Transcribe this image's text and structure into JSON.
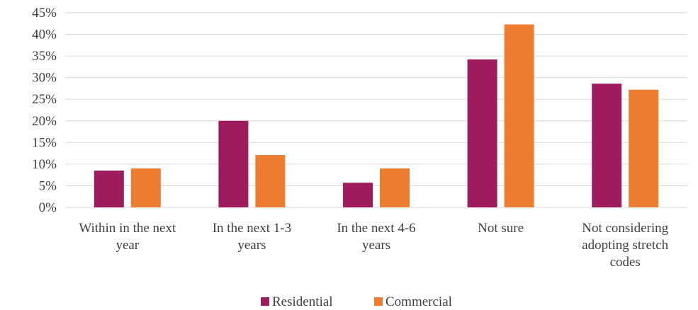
{
  "chart_data": {
    "type": "bar",
    "categories": [
      [
        "Within in the next",
        "year"
      ],
      [
        "In the next 1-3",
        "years"
      ],
      [
        "In the next 4-6",
        "years"
      ],
      [
        "Not sure"
      ],
      [
        "Not considering",
        "adopting stretch",
        "codes"
      ]
    ],
    "series": [
      {
        "name": "Residential",
        "color": "#9e1b5e",
        "values": [
          8.5,
          20.0,
          5.7,
          34.2,
          28.6
        ]
      },
      {
        "name": "Commercial",
        "color": "#ed7d31",
        "values": [
          9.0,
          12.1,
          9.0,
          42.3,
          27.2
        ]
      }
    ],
    "y_ticks": [
      "0%",
      "5%",
      "10%",
      "15%",
      "20%",
      "25%",
      "30%",
      "35%",
      "40%",
      "45%"
    ],
    "ylim": [
      0,
      45
    ],
    "title": "",
    "xlabel": "",
    "ylabel": "",
    "grid": true,
    "legend_position": "bottom"
  }
}
